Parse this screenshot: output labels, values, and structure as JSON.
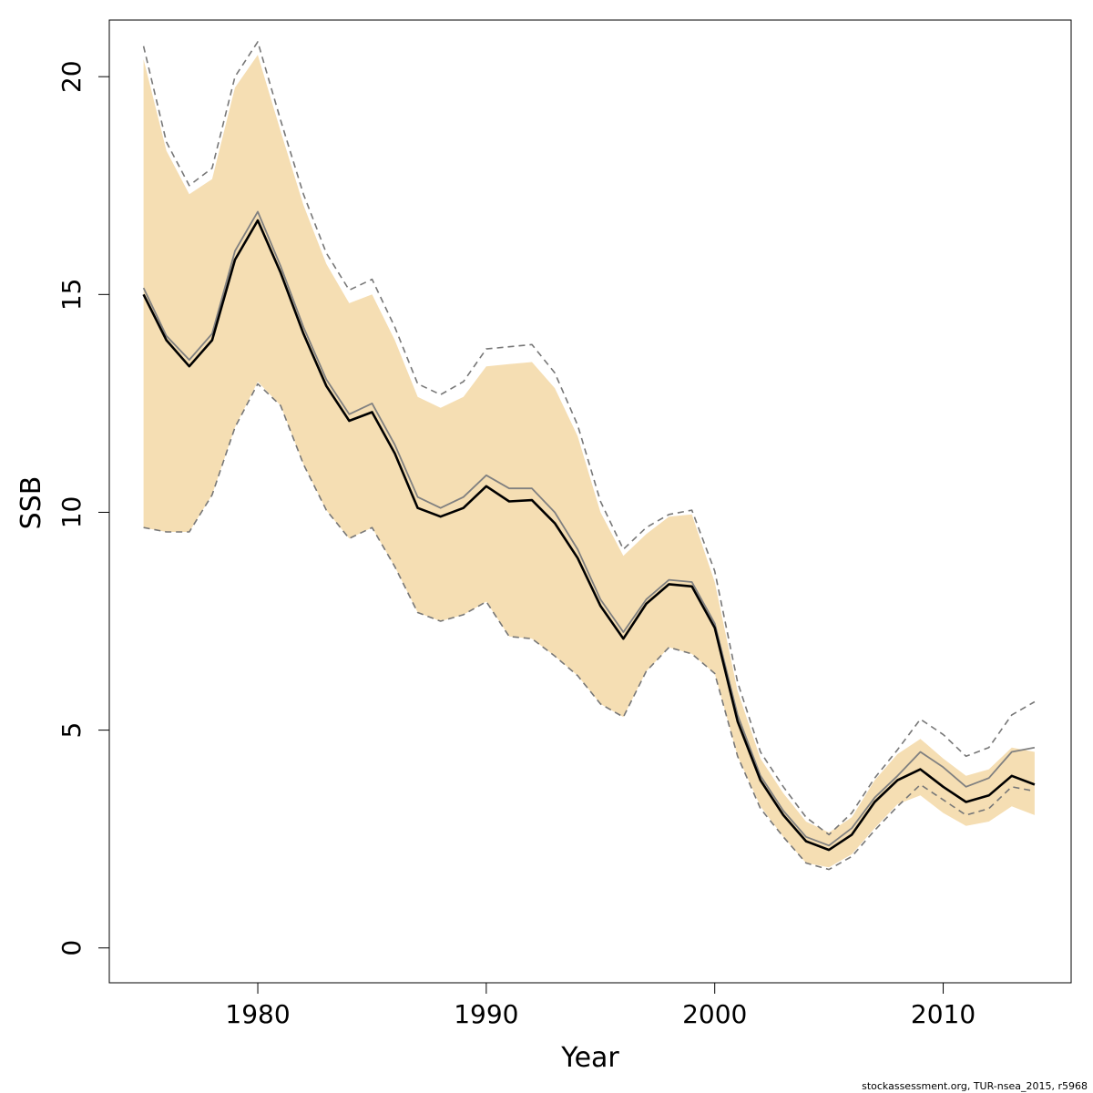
{
  "chart_data": {
    "type": "line",
    "title": "",
    "xlabel": "Year",
    "ylabel": "SSB",
    "xlim": [
      1973.5,
      2015.6
    ],
    "ylim": [
      -0.8,
      21.3
    ],
    "x_ticks": [
      1980,
      1990,
      2000,
      2010
    ],
    "y_ticks": [
      0,
      5,
      10,
      15,
      20
    ],
    "grid": false,
    "legend": "none",
    "colors": {
      "band": "#F5DEB3",
      "estimate": "#000000",
      "previous": "#808080",
      "previous_ci": "#777777"
    },
    "years": [
      1975,
      1976,
      1977,
      1978,
      1979,
      1980,
      1981,
      1982,
      1983,
      1984,
      1985,
      1986,
      1987,
      1988,
      1989,
      1990,
      1991,
      1992,
      1993,
      1994,
      1995,
      1996,
      1997,
      1998,
      1999,
      2000,
      2001,
      2002,
      2003,
      2004,
      2005,
      2006,
      2007,
      2008,
      2009,
      2010,
      2011,
      2012,
      2013,
      2014
    ],
    "series": [
      {
        "role": "estimate",
        "values": [
          15.0,
          13.95,
          13.35,
          13.95,
          15.8,
          16.7,
          15.5,
          14.1,
          12.9,
          12.1,
          12.3,
          11.35,
          10.1,
          9.9,
          10.1,
          10.6,
          10.25,
          10.28,
          9.75,
          8.95,
          7.85,
          7.1,
          7.9,
          8.35,
          8.3,
          7.35,
          5.2,
          3.85,
          3.05,
          2.45,
          2.25,
          2.6,
          3.35,
          3.85,
          4.1,
          3.7,
          3.35,
          3.5,
          3.95,
          3.75
        ]
      },
      {
        "role": "ci_upper",
        "values": [
          20.4,
          18.3,
          17.3,
          17.65,
          19.75,
          20.5,
          18.75,
          17.05,
          15.7,
          14.8,
          15.0,
          13.95,
          12.65,
          12.4,
          12.65,
          13.35,
          13.4,
          13.45,
          12.85,
          11.75,
          10.0,
          9.0,
          9.5,
          9.9,
          9.95,
          8.4,
          5.9,
          4.35,
          3.55,
          2.9,
          2.65,
          3.0,
          3.85,
          4.45,
          4.8,
          4.35,
          3.95,
          4.1,
          4.6,
          4.5
        ]
      },
      {
        "role": "ci_lower",
        "values": [
          9.65,
          9.55,
          9.55,
          10.4,
          11.95,
          13.0,
          12.45,
          11.1,
          10.05,
          9.4,
          9.65,
          8.75,
          7.7,
          7.5,
          7.65,
          7.95,
          7.15,
          7.1,
          6.7,
          6.25,
          5.6,
          5.3,
          6.35,
          6.9,
          6.75,
          6.3,
          4.4,
          3.25,
          2.55,
          1.95,
          1.85,
          2.15,
          2.75,
          3.3,
          3.5,
          3.1,
          2.8,
          2.9,
          3.25,
          3.05
        ]
      },
      {
        "role": "previous",
        "values": [
          15.15,
          14.05,
          13.5,
          14.1,
          16.0,
          16.9,
          15.65,
          14.25,
          13.05,
          12.25,
          12.5,
          11.55,
          10.35,
          10.1,
          10.35,
          10.85,
          10.55,
          10.55,
          10.0,
          9.15,
          8.0,
          7.25,
          8.0,
          8.45,
          8.4,
          7.45,
          5.35,
          3.95,
          3.15,
          2.55,
          2.35,
          2.75,
          3.45,
          3.95,
          4.5,
          4.15,
          3.7,
          3.9,
          4.5,
          4.6
        ]
      },
      {
        "role": "previous_ci_upper",
        "values": [
          20.7,
          18.5,
          17.5,
          17.9,
          20.0,
          20.8,
          19.0,
          17.3,
          15.95,
          15.1,
          15.35,
          14.25,
          12.95,
          12.7,
          13.0,
          13.75,
          13.8,
          13.85,
          13.2,
          12.0,
          10.25,
          9.15,
          9.65,
          9.95,
          10.05,
          8.65,
          6.1,
          4.5,
          3.7,
          3.0,
          2.6,
          3.1,
          3.9,
          4.55,
          5.25,
          4.9,
          4.4,
          4.6,
          5.35,
          5.65
        ]
      },
      {
        "role": "previous_ci_lower",
        "values": [
          9.65,
          9.55,
          9.55,
          10.4,
          11.95,
          12.95,
          12.45,
          11.1,
          10.05,
          9.4,
          9.65,
          8.75,
          7.7,
          7.5,
          7.65,
          7.95,
          7.15,
          7.1,
          6.7,
          6.25,
          5.6,
          5.3,
          6.35,
          6.9,
          6.75,
          6.3,
          4.4,
          3.2,
          2.55,
          1.95,
          1.8,
          2.1,
          2.7,
          3.25,
          3.75,
          3.4,
          3.05,
          3.2,
          3.7,
          3.6
        ]
      }
    ]
  },
  "footer": "stockassessment.org, TUR-nsea_2015, r5968"
}
